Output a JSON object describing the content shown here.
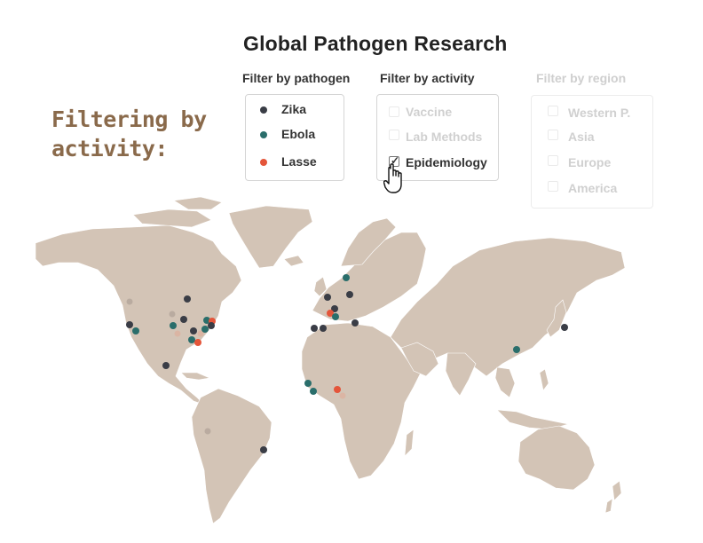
{
  "title": "Global Pathogen Research",
  "side_note": [
    "Filtering by",
    "activity:"
  ],
  "filters": {
    "pathogen": {
      "heading": "Filter by pathogen",
      "options": [
        {
          "label": "Zika",
          "color": "#3a3d46"
        },
        {
          "label": "Ebola",
          "color": "#2a6e6b"
        },
        {
          "label": "Lasse",
          "color": "#e4553a"
        }
      ]
    },
    "activity": {
      "heading": "Filter by activity",
      "options": [
        {
          "label": "Vaccine",
          "checked": false
        },
        {
          "label": "Lab Methods",
          "checked": false
        },
        {
          "label": "Epidemiology",
          "checked": true
        }
      ]
    },
    "region": {
      "heading": "Filter by region",
      "options": [
        {
          "label": "Western P."
        },
        {
          "label": "Asia"
        },
        {
          "label": "Europe"
        },
        {
          "label": "America"
        }
      ]
    }
  },
  "colors": {
    "land": "#d3c4b6",
    "zika": "#3a3d46",
    "ebola": "#2a6e6b",
    "lasse": "#e4553a",
    "accent_title": "#8a6a4b"
  },
  "icons": {
    "cursor": "hand-pointer-icon",
    "check": "checkmark-icon"
  }
}
